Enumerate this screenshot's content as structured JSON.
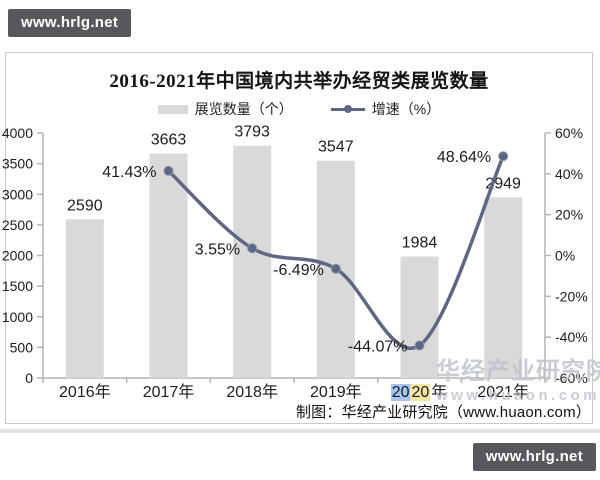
{
  "badges": {
    "top_left": "www.hrlg.net",
    "bottom_right": "www.hrlg.net",
    "bg_color": "#57585c",
    "text_color": "#ffffff"
  },
  "chart": {
    "title": "2016-2021年中国境内共举办经贸类展览数量",
    "legend": [
      {
        "label": "展览数量（个）",
        "type": "bar"
      },
      {
        "label": "增速（%）",
        "type": "line"
      }
    ],
    "caption": "制图：华经产业研究院（www.huaon.com）",
    "watermark": {
      "line1": "华经产业研究院",
      "line2": "www.huaon.com",
      "color": "#bfc4cc"
    }
  },
  "chart_data": {
    "type": "bar",
    "title": "2016-2021年中国境内共举办经贸类展览数量",
    "categories": [
      "2016年",
      "2017年",
      "2018年",
      "2019年",
      "2020年",
      "2021年"
    ],
    "series": [
      {
        "name": "展览数量（个）",
        "type": "bar",
        "axis": "left",
        "color": "#d9d9d9",
        "values": [
          2590,
          3663,
          3793,
          3547,
          1984,
          2949
        ],
        "labels": [
          "2590",
          "3663",
          "3793",
          "3547",
          "1984",
          "2949"
        ]
      },
      {
        "name": "增速（%）",
        "type": "line",
        "axis": "right",
        "color": "#5d6783",
        "values": [
          null,
          41.43,
          3.55,
          -6.49,
          -44.07,
          48.64
        ],
        "labels": [
          "",
          "41.43%",
          "3.55%",
          "-6.49%",
          "-44.07%",
          "48.64%"
        ]
      }
    ],
    "y_left": {
      "min": 0,
      "max": 4000,
      "step": 500,
      "ticks": [
        "4000",
        "3500",
        "3000",
        "2500",
        "2000",
        "1500",
        "1000",
        "500",
        "0"
      ]
    },
    "y_right": {
      "min": -60,
      "max": 60,
      "step": 20,
      "ticks": [
        "60%",
        "40%",
        "20%",
        "0%",
        "-20%",
        "-40%",
        "-60%"
      ]
    },
    "grid": false,
    "legend_position": "top",
    "x_highlight": {
      "index": 4,
      "segments": [
        {
          "text": "20",
          "bg": "#a6c3f5"
        },
        {
          "text": "20",
          "bg": "#f3e6a2"
        },
        {
          "text": "年",
          "bg": ""
        }
      ]
    }
  }
}
